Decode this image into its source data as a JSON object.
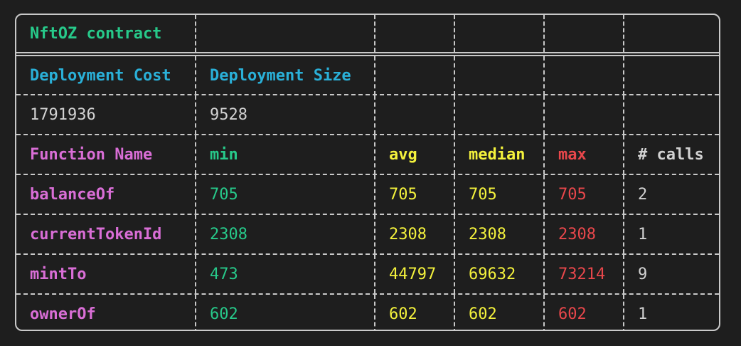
{
  "title": "NftOZ contract",
  "deployment": {
    "headers": [
      "Deployment Cost",
      "Deployment Size"
    ],
    "values": [
      "1791936",
      "9528"
    ]
  },
  "functions": {
    "headers": [
      "Function Name",
      "min",
      "avg",
      "median",
      "max",
      "# calls"
    ],
    "rows": [
      [
        "balanceOf",
        "705",
        "705",
        "705",
        "705",
        "2"
      ],
      [
        "currentTokenId",
        "2308",
        "2308",
        "2308",
        "2308",
        "1"
      ],
      [
        "mintTo",
        "473",
        "44797",
        "69632",
        "73214",
        "9"
      ],
      [
        "ownerOf",
        "602",
        "602",
        "602",
        "602",
        "1"
      ]
    ]
  },
  "colors": {
    "background": "#1e1e1e",
    "title": "#27c98a",
    "deployment_header": "#2ab0d8",
    "function_name_header": "#d96ed6",
    "min": "#27c98a",
    "avg": "#f4f23c",
    "median": "#f4f23c",
    "max": "#e8474b",
    "text": "#d2d2d2"
  }
}
